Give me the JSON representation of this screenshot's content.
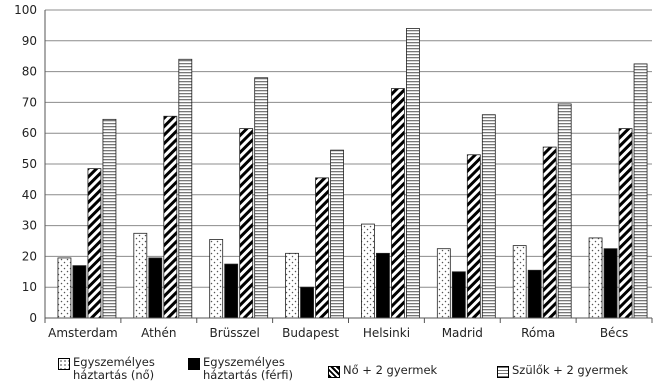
{
  "chart_data": {
    "type": "bar",
    "categories": [
      "Amsterdam",
      "Athén",
      "Brüsszel",
      "Budapest",
      "Helsinki",
      "Madrid",
      "Róma",
      "Bécs"
    ],
    "series": [
      {
        "name": "Egyszemélyes háztartás (nő)",
        "pattern": "dots",
        "values": [
          19.5,
          27.5,
          25.5,
          21,
          30.5,
          22.5,
          23.5,
          26
        ]
      },
      {
        "name": "Egyszemélyes háztartás (férfi)",
        "pattern": "solid",
        "values": [
          17,
          19.5,
          17.5,
          10,
          21,
          15,
          15.5,
          22.5
        ]
      },
      {
        "name": "Nő + 2 gyermek",
        "pattern": "diagonal",
        "values": [
          48.5,
          65.5,
          61.5,
          45.5,
          74.5,
          53,
          55.5,
          61.5
        ]
      },
      {
        "name": "Szülők + 2 gyermek",
        "pattern": "horizontal",
        "values": [
          64.5,
          84,
          78,
          54.5,
          94,
          66,
          69.5,
          82.5
        ]
      }
    ],
    "ylim": [
      0,
      100
    ],
    "yticks": [
      0,
      10,
      20,
      30,
      40,
      50,
      60,
      70,
      80,
      90,
      100
    ],
    "grid": true,
    "legend_position": "bottom"
  },
  "legend": {
    "items": [
      {
        "line1": "Egyszemélyes",
        "line2": "háztartás (nő)"
      },
      {
        "line1": "Egyszemélyes",
        "line2": "háztartás (férfi)"
      },
      {
        "line1": "Nő + 2 gyermek",
        "line2": ""
      },
      {
        "line1": "Szülők + 2 gyermek",
        "line2": ""
      }
    ]
  }
}
